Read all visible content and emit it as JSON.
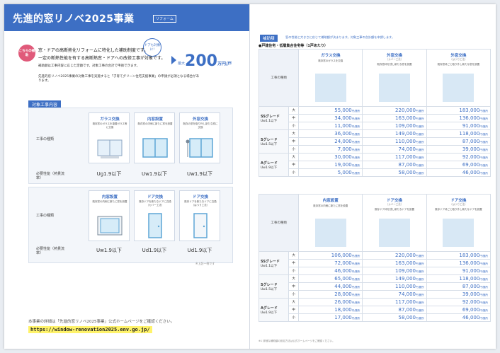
{
  "left": {
    "title": "先進的窓リノベ2025事業",
    "title_badge": "リフォーム",
    "bubble": "こちらの補助",
    "door_bubble": "ドアも対象に!",
    "intro_line1": "窓・ドアの高断熱化リフォームに特化した補助制度です。",
    "intro_line2": "一定の断熱性能を有する高断熱窓・ドアへの改修工事が対象です。",
    "bullets": [
      "補助額は工事内容に応じた定額です。対象工事の合計で申請できます。",
      "先進的窓リノベ2025事業の対象工事を実施すると「子育てグリーン住宅支援事業」の申請が必須となる場合があります。"
    ],
    "amount_prefix": "最大",
    "amount": "200",
    "amount_unit": "万円/戸",
    "section_label": "対象工事内容",
    "row_labels": [
      "工事の種類",
      "必要性能（熱貫流率）",
      "工事の種類",
      "必要性能（熱貫流率）"
    ],
    "cards_top": [
      {
        "title": "ガラス交換",
        "desc": "既存窓のガラスを複層ガラス等に交換"
      },
      {
        "title": "内窓設置",
        "desc": "既存窓の内側に新たに窓を設置"
      },
      {
        "title": "外窓交換",
        "desc": "既存の窓を取り外し新たな窓に交換"
      }
    ],
    "perf_top": [
      "Ug1.9以下",
      "Uw1.9以下",
      "Uw1.9以下"
    ],
    "cards_bottom": [
      {
        "title": "内窓設置",
        "desc": "既存窓の内側に新たに窓を設置"
      },
      {
        "title": "ドア交換",
        "desc": "既存ドアを新たなドアに交換（カバー工法）"
      },
      {
        "title": "ドア交換",
        "desc": "既存ドアを新たなドアに交換（はつり工法）"
      }
    ],
    "perf_bottom": [
      "Uw1.9以下",
      "Ud1.9以下",
      "Ud1.9以下"
    ],
    "note": "※上記一例です",
    "footer_text": "本事業の詳細は「先進的窓リノベ2025事業」公式ホームページをご確認ください。",
    "footer_url": "https://window-renovation2025.env.go.jp/"
  },
  "right": {
    "badge": "補助額",
    "note": "窓の性能と大きさに応じて補助額が決まります。対象工事の合計額を申請します。",
    "table_title": "●戸建住宅・低層集合住宅等（1戸あたり）",
    "corner_label": "工事の種類",
    "grade_labels": [
      "SSグレード",
      "Uw1.1以下",
      "Sグレード",
      "Uw1.5以下",
      "Aグレード",
      "Uw1.9以下"
    ],
    "sizes": [
      "大",
      "中",
      "小"
    ],
    "top_headers": [
      {
        "title": "ガラス交換",
        "sub": "",
        "desc": "既存窓のガラスを交換"
      },
      {
        "title": "外窓交換",
        "sub": "（カバー工法）",
        "desc": "既存窓枠を残し新たな窓を設置"
      },
      {
        "title": "外窓交換",
        "sub": "（はつり工法）",
        "desc": "既存窓枠ごと取り外し新たな窓を設置"
      }
    ],
    "top_rows": [
      [
        "55,000",
        "220,000",
        "183,000"
      ],
      [
        "34,000",
        "163,000",
        "136,000"
      ],
      [
        "11,000",
        "109,000",
        "91,000"
      ],
      [
        "36,000",
        "149,000",
        "118,000"
      ],
      [
        "24,000",
        "110,000",
        "87,000"
      ],
      [
        "7,000",
        "74,000",
        "39,000"
      ],
      [
        "30,000",
        "117,000",
        "92,000"
      ],
      [
        "19,000",
        "87,000",
        "69,000"
      ],
      [
        "5,000",
        "58,000",
        "46,000"
      ]
    ],
    "bottom_headers": [
      {
        "title": "内窓設置",
        "sub": "",
        "desc": "既存窓の内側に新たに窓を設置"
      },
      {
        "title": "ドア交換",
        "sub": "（カバー工法）",
        "desc": "既存ドア枠を残し新たなドアを設置"
      },
      {
        "title": "ドア交換",
        "sub": "（はつり工法）",
        "desc": "既存ドア枠ごと取り外し新たなドアを設置"
      }
    ],
    "bottom_rows": [
      [
        "106,000",
        "220,000",
        "183,000"
      ],
      [
        "72,000",
        "163,000",
        "136,000"
      ],
      [
        "46,000",
        "109,000",
        "91,000"
      ],
      [
        "65,000",
        "149,000",
        "118,000"
      ],
      [
        "44,000",
        "110,000",
        "87,000"
      ],
      [
        "28,000",
        "74,000",
        "39,000"
      ],
      [
        "26,000",
        "117,000",
        "92,000"
      ],
      [
        "18,000",
        "87,000",
        "69,000"
      ],
      [
        "17,000",
        "58,000",
        "46,000"
      ]
    ],
    "yen_unit": "円/箇所",
    "footnote": "※1 詳細な補助額の設定方法は公式ホームページをご確認ください。"
  }
}
